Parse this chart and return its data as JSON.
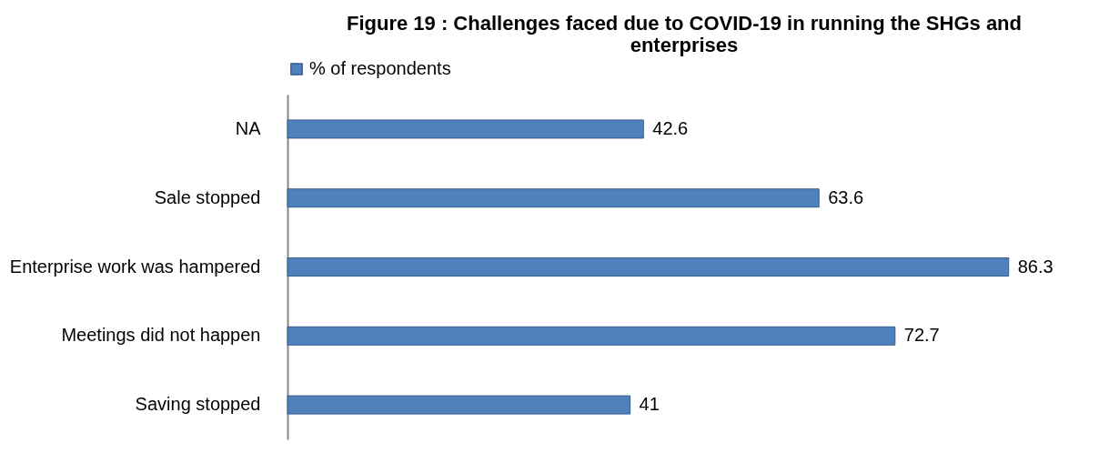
{
  "chart_data": {
    "type": "bar",
    "orientation": "horizontal",
    "title": "Figure 19 : Challenges faced due to COVID-19 in running the SHGs and enterprises",
    "categories": [
      "NA",
      "Sale stopped",
      "Enterprise work was hampered",
      "Meetings did not happen",
      "Saving stopped"
    ],
    "series": [
      {
        "name": "% of respondents",
        "color": "#4f81bd",
        "values": [
          42.6,
          63.6,
          86.3,
          72.7,
          41
        ]
      }
    ],
    "data_labels": true,
    "legend": "top",
    "grid": false
  }
}
